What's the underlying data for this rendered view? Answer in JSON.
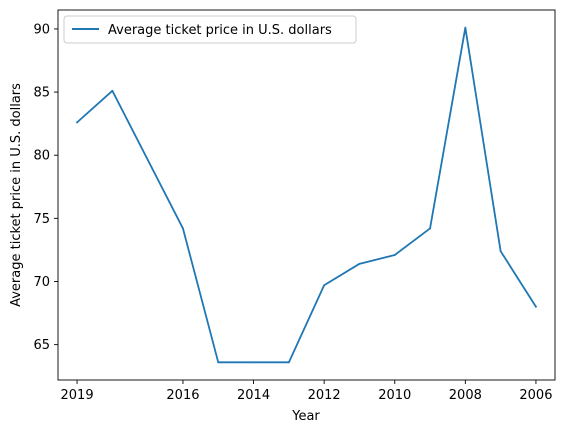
{
  "chart_data": {
    "type": "line",
    "title": "",
    "xlabel": "Year",
    "ylabel": "Average ticket price in U.S. dollars",
    "x": [
      2019,
      2018,
      2016,
      2015,
      2014,
      2013,
      2012,
      2011,
      2010,
      2009,
      2008,
      2007,
      2006
    ],
    "x_tick_labels": [
      {
        "value": 2019,
        "label": "2019"
      },
      {
        "value": 2016,
        "label": "2016"
      },
      {
        "value": 2014,
        "label": "2014"
      },
      {
        "value": 2012,
        "label": "2012"
      },
      {
        "value": 2010,
        "label": "2010"
      },
      {
        "value": 2008,
        "label": "2008"
      },
      {
        "value": 2006,
        "label": "2006"
      }
    ],
    "y_ticks": [
      65,
      70,
      75,
      80,
      85,
      90
    ],
    "ylim": [
      62.2,
      91.5
    ],
    "grid": false,
    "legend_position": "top-left",
    "series": [
      {
        "name": "Average ticket price in U.S. dollars",
        "color": "#1f77b4",
        "values": [
          82.6,
          85.1,
          74.2,
          63.6,
          63.6,
          63.6,
          69.7,
          71.4,
          72.1,
          74.2,
          90.1,
          72.4,
          68.0
        ]
      }
    ]
  }
}
